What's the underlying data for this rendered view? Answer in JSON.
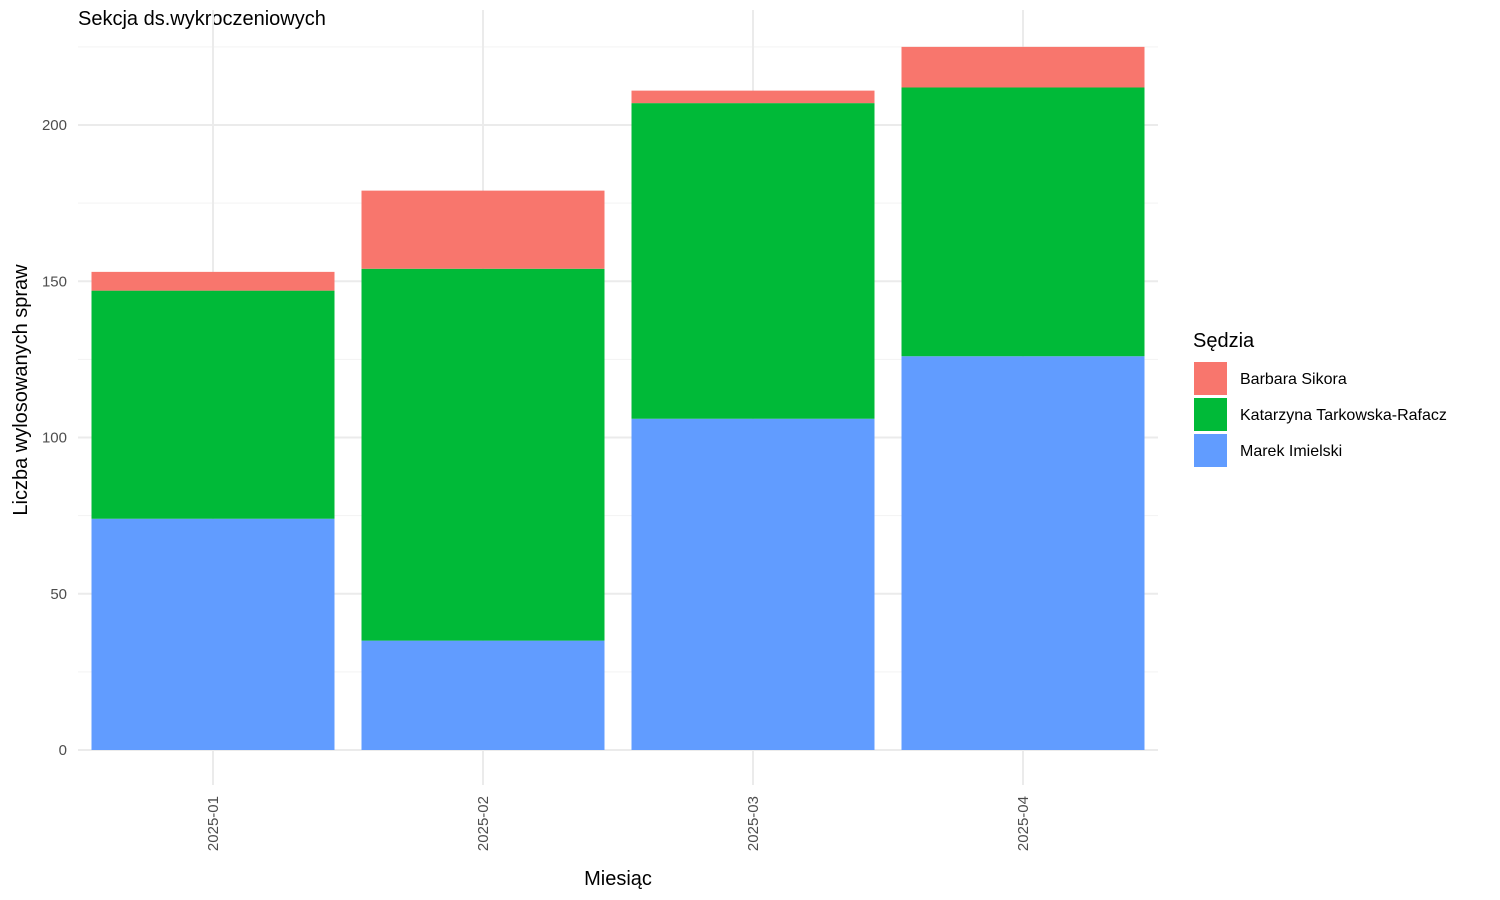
{
  "chart_data": {
    "type": "bar",
    "stacked": true,
    "title": "Sekcja ds.wykroczeniowych",
    "xlabel": "Miesiąc",
    "ylabel": "Liczba wylosowanych spraw",
    "categories": [
      "2025-01",
      "2025-02",
      "2025-03",
      "2025-04"
    ],
    "ylim": [
      0,
      225
    ],
    "yticks": [
      0,
      50,
      100,
      150,
      200
    ],
    "grid": true,
    "legend": {
      "title": "Sędzia",
      "position": "right"
    },
    "series": [
      {
        "name": "Marek Imielski",
        "color": "#619CFF",
        "values": [
          74,
          35,
          106,
          126
        ]
      },
      {
        "name": "Katarzyna Tarkowska-Rafacz",
        "color": "#00BA38",
        "values": [
          73,
          119,
          101,
          86
        ]
      },
      {
        "name": "Barbara Sikora",
        "color": "#F8766D",
        "values": [
          6,
          25,
          4,
          13
        ]
      }
    ],
    "legend_order": [
      "Barbara Sikora",
      "Katarzyna Tarkowska-Rafacz",
      "Marek Imielski"
    ]
  }
}
